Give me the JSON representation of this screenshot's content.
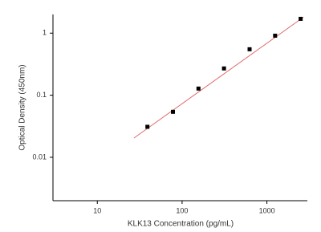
{
  "chart_data": {
    "type": "scatter",
    "x_label": "KLK13 Concentration (pg/mL)",
    "y_label": "Optical Density (450nm)",
    "x_log": true,
    "y_log": true,
    "xlim": [
      3,
      3000
    ],
    "xticks": [
      10,
      100,
      1000
    ],
    "ylim": [
      0.002,
      2
    ],
    "yticks": [
      0.01,
      0.1,
      1
    ],
    "series": [
      {
        "type": "scatter",
        "color": "#000000",
        "x": [
          39,
          78,
          156,
          312,
          625,
          1250,
          2500
        ],
        "values": [
          0.031,
          0.054,
          0.128,
          0.27,
          0.55,
          0.91,
          1.7
        ]
      },
      {
        "type": "line",
        "color": "#e06a6a",
        "x": [
          27,
          2700
        ],
        "values": [
          0.0204,
          1.81
        ]
      }
    ]
  }
}
